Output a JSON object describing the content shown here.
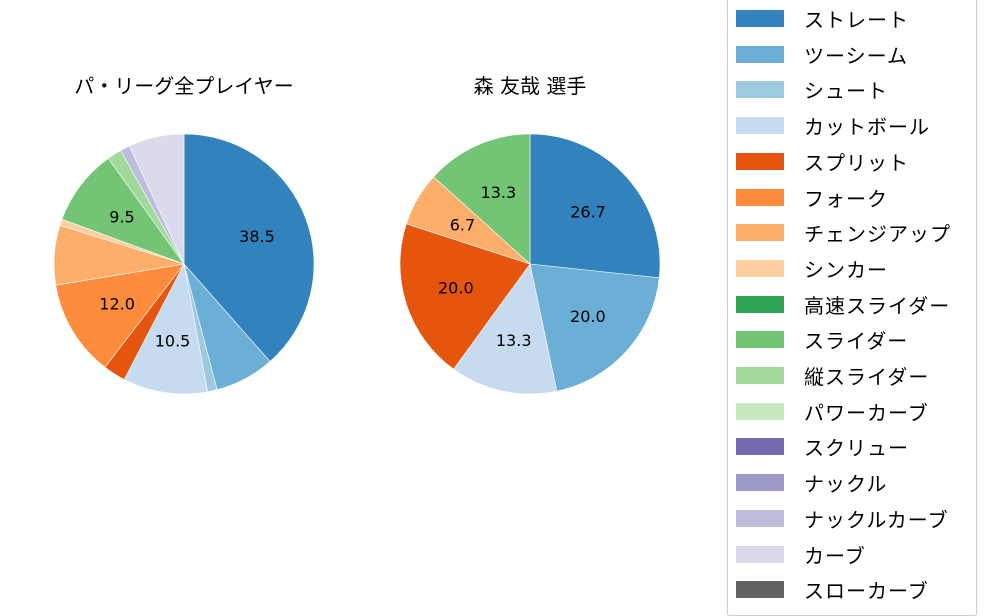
{
  "chart_data": [
    {
      "type": "pie",
      "title": "パ・リーグ全プレイヤー",
      "start_angle_deg": 90,
      "direction": "clockwise",
      "categories": [
        "ストレート",
        "ツーシーム",
        "シュート",
        "カットボール",
        "スプリット",
        "フォーク",
        "チェンジアップ",
        "シンカー",
        "スライダー",
        "縦スライダー",
        "ナックルカーブ",
        "カーブ"
      ],
      "values": [
        38.5,
        7.4,
        1.2,
        10.5,
        2.8,
        12.0,
        7.4,
        0.8,
        9.5,
        1.8,
        1.2,
        6.9
      ],
      "labels_shown": [
        "38.5",
        "",
        "",
        "10.5",
        "",
        "12.0",
        "",
        "",
        "9.5",
        "",
        "",
        ""
      ],
      "colors": [
        "#3182bd",
        "#6baed6",
        "#9ecae1",
        "#c6dbef",
        "#e6550d",
        "#fd8d3c",
        "#fdae6b",
        "#fdd0a2",
        "#74c476",
        "#a1d99b",
        "#bcbddc",
        "#dadaeb"
      ]
    },
    {
      "type": "pie",
      "title": "森 友哉  選手",
      "start_angle_deg": 90,
      "direction": "clockwise",
      "categories": [
        "ストレート",
        "ツーシーム",
        "カットボール",
        "スプリット",
        "チェンジアップ",
        "スライダー"
      ],
      "values": [
        26.7,
        20.0,
        13.3,
        20.0,
        6.7,
        13.3
      ],
      "labels_shown": [
        "26.7",
        "20.0",
        "13.3",
        "20.0",
        "6.7",
        "13.3"
      ],
      "colors": [
        "#3182bd",
        "#6baed6",
        "#c6dbef",
        "#e6550d",
        "#fdae6b",
        "#74c476"
      ]
    }
  ],
  "titles": {
    "left": "パ・リーグ全プレイヤー",
    "right": "森 友哉  選手"
  },
  "legend": {
    "position": "right",
    "items": [
      {
        "label": "ストレート",
        "color": "#3182bd"
      },
      {
        "label": "ツーシーム",
        "color": "#6baed6"
      },
      {
        "label": "シュート",
        "color": "#9ecae1"
      },
      {
        "label": "カットボール",
        "color": "#c6dbef"
      },
      {
        "label": "スプリット",
        "color": "#e6550d"
      },
      {
        "label": "フォーク",
        "color": "#fd8d3c"
      },
      {
        "label": "チェンジアップ",
        "color": "#fdae6b"
      },
      {
        "label": "シンカー",
        "color": "#fdd0a2"
      },
      {
        "label": "高速スライダー",
        "color": "#31a354"
      },
      {
        "label": "スライダー",
        "color": "#74c476"
      },
      {
        "label": "縦スライダー",
        "color": "#a1d99b"
      },
      {
        "label": "パワーカーブ",
        "color": "#c7e9c0"
      },
      {
        "label": "スクリュー",
        "color": "#756bb1"
      },
      {
        "label": "ナックル",
        "color": "#9e9ac8"
      },
      {
        "label": "ナックルカーブ",
        "color": "#bcbddc"
      },
      {
        "label": "カーブ",
        "color": "#dadaeb"
      },
      {
        "label": "スローカーブ",
        "color": "#636363"
      }
    ]
  }
}
